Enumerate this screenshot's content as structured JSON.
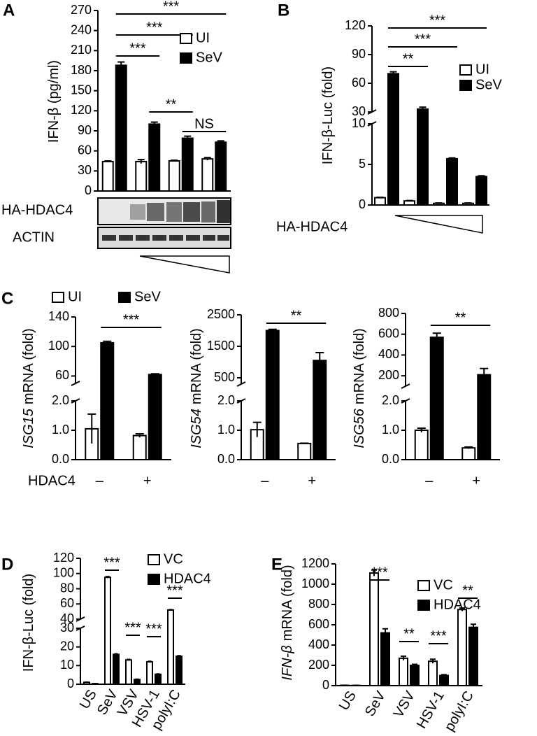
{
  "chart_data": [
    {
      "type": "bar",
      "panel": "A",
      "y_label": "IFN-β (pg/ml)",
      "categories": [
        null,
        null,
        null,
        null
      ],
      "series": [
        {
          "name": "UI",
          "color": "#ffffff",
          "values": [
            44,
            44,
            45,
            48
          ],
          "errors": [
            1,
            3,
            1,
            2
          ]
        },
        {
          "name": "SeV",
          "color": "#000000",
          "values": [
            188,
            100,
            79,
            73
          ],
          "errors": [
            5,
            3,
            3,
            2
          ]
        }
      ],
      "ylim": [
        0,
        270
      ],
      "yticks": [
        0,
        30,
        60,
        90,
        120,
        150,
        180,
        210,
        240,
        270
      ],
      "annotations": [
        "***",
        "***",
        "***",
        "**",
        "NS"
      ],
      "blot_labels": [
        "HA-HDAC4",
        "ACTIN"
      ]
    },
    {
      "type": "bar",
      "panel": "B",
      "y_label": "IFN-β-Luc (fold)",
      "x_label": "HA-HDAC4",
      "categories": [
        null,
        null,
        null,
        null
      ],
      "series": [
        {
          "name": "UI",
          "color": "#ffffff",
          "values": [
            0.9,
            0.5,
            0.2,
            0.2
          ],
          "errors": [
            0.05,
            0.05,
            0.05,
            0.05
          ]
        },
        {
          "name": "SeV",
          "color": "#000000",
          "values": [
            70,
            33,
            5.7,
            3.5
          ],
          "errors": [
            2,
            2,
            0.1,
            0.1
          ]
        }
      ],
      "y_segments": [
        {
          "ylim": [
            0,
            10
          ],
          "yticks": [
            0,
            5,
            10
          ]
        },
        {
          "ylim": [
            30,
            120
          ],
          "yticks": [
            30,
            60,
            90,
            120
          ]
        }
      ],
      "annotations": [
        "**",
        "***",
        "***"
      ]
    },
    {
      "type": "bar",
      "panel": "C",
      "y_label_italic": "ISG15",
      "y_label": "mRNA (fold)",
      "x_label": "HDAC4",
      "categories": [
        "–",
        "+"
      ],
      "series": [
        {
          "name": "UI",
          "color": "#ffffff",
          "values": [
            1.05,
            0.82
          ],
          "errors": [
            0.5,
            0.06
          ]
        },
        {
          "name": "SeV",
          "color": "#000000",
          "values": [
            105,
            62
          ],
          "errors": [
            2,
            1
          ]
        }
      ],
      "y_segments": [
        {
          "ylim": [
            0,
            2
          ],
          "yticks": [
            {
              "value": 0,
              "label": "0.0"
            },
            {
              "value": 1,
              "label": "1.0"
            },
            {
              "value": 2,
              "label": "2.0"
            }
          ]
        },
        {
          "ylim": [
            50,
            140
          ],
          "yticks": [
            60,
            100,
            140
          ]
        }
      ],
      "annotations": [
        "***"
      ]
    },
    {
      "type": "bar",
      "y_label_italic": "ISG54",
      "y_label": "mRNA (fold)",
      "categories": [
        "–",
        "+"
      ],
      "series": [
        {
          "color": "#ffffff",
          "values": [
            1.02,
            0.55
          ],
          "errors": [
            0.25,
            0.01
          ]
        },
        {
          "color": "#000000",
          "values": [
            2000,
            1050
          ],
          "errors": [
            40,
            250
          ]
        }
      ],
      "y_segments": [
        {
          "ylim": [
            0,
            2
          ],
          "yticks": [
            {
              "value": 0,
              "label": "0.0"
            },
            {
              "value": 1,
              "label": "1.0"
            },
            {
              "value": 2,
              "label": "2.0"
            }
          ]
        },
        {
          "ylim": [
            300,
            2500
          ],
          "yticks": [
            500,
            1500,
            2500
          ]
        }
      ],
      "annotations": [
        "**"
      ]
    },
    {
      "type": "bar",
      "y_label_italic": "ISG56",
      "y_label": "mRNA (fold)",
      "categories": [
        "–",
        "+"
      ],
      "series": [
        {
          "color": "#ffffff",
          "values": [
            1.0,
            0.4
          ],
          "errors": [
            0.07,
            0.03
          ]
        },
        {
          "color": "#000000",
          "values": [
            570,
            210
          ],
          "errors": [
            40,
            60
          ]
        }
      ],
      "y_segments": [
        {
          "ylim": [
            0,
            2
          ],
          "yticks": [
            {
              "value": 0,
              "label": "0.0"
            },
            {
              "value": 1,
              "label": "1.0"
            },
            {
              "value": 2,
              "label": "2.0"
            }
          ]
        },
        {
          "ylim": [
            100,
            800
          ],
          "yticks": [
            200,
            400,
            600,
            800
          ]
        }
      ],
      "annotations": [
        "**"
      ]
    },
    {
      "type": "bar",
      "panel": "D",
      "y_label": "IFN-β-Luc (fold)",
      "categories": [
        "US",
        "SeV",
        "VSV",
        "HSV-1",
        "polyI:C"
      ],
      "series": [
        {
          "name": "VC",
          "color": "#ffffff",
          "values": [
            1,
            95,
            13,
            12,
            52
          ],
          "errors": [
            0.1,
            1,
            0.3,
            0.3,
            0.5
          ]
        },
        {
          "name": "HDAC4",
          "color": "#000000",
          "values": [
            0.3,
            16,
            2.5,
            5.3,
            15
          ],
          "errors": [
            0.05,
            0.3,
            0.2,
            0.2,
            0.3
          ]
        }
      ],
      "y_segments": [
        {
          "ylim": [
            0,
            30
          ],
          "yticks": [
            0,
            10,
            20,
            30
          ]
        },
        {
          "ylim": [
            40,
            120
          ],
          "yticks": [
            40,
            60,
            80,
            100,
            120
          ]
        }
      ],
      "annotations": [
        "***",
        "***",
        "***",
        "***"
      ]
    },
    {
      "type": "bar",
      "panel": "E",
      "y_label_italic": "IFN-β",
      "y_label": "mRNA (fold)",
      "categories": [
        "US",
        "SeV",
        "VSV",
        "HSV-1",
        "polyI:C"
      ],
      "series": [
        {
          "name": "VC",
          "color": "#ffffff",
          "values": [
            3,
            1110,
            270,
            240,
            750
          ],
          "errors": [
            1,
            30,
            20,
            20,
            15
          ]
        },
        {
          "name": "HDAC4",
          "color": "#000000",
          "values": [
            2,
            520,
            200,
            100,
            575
          ],
          "errors": [
            1,
            40,
            10,
            8,
            30
          ]
        }
      ],
      "ylim": [
        0,
        1200
      ],
      "yticks": [
        0,
        200,
        400,
        600,
        800,
        1000,
        1200
      ],
      "annotations": [
        "***",
        "**",
        "***",
        "**"
      ]
    }
  ]
}
